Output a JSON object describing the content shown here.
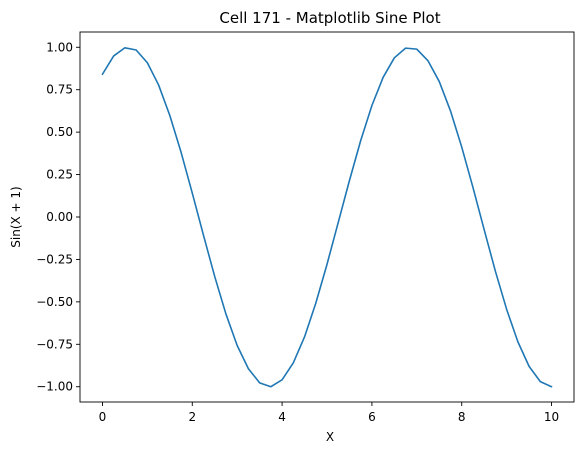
{
  "chart_data": {
    "type": "line",
    "title": "Cell 171 - Matplotlib Sine Plot",
    "xlabel": "X",
    "ylabel": "Sin(X + 1)",
    "xlim": [
      -0.5,
      10.5
    ],
    "ylim": [
      -1.09,
      1.09
    ],
    "xticks": [
      0,
      2,
      4,
      6,
      8,
      10
    ],
    "xtick_labels": [
      "0",
      "2",
      "4",
      "6",
      "8",
      "10"
    ],
    "yticks": [
      -1.0,
      -0.75,
      -0.5,
      -0.25,
      0.0,
      0.25,
      0.5,
      0.75,
      1.0
    ],
    "ytick_labels": [
      "−1.00",
      "−0.75",
      "−0.50",
      "−0.25",
      "0.00",
      "0.25",
      "0.50",
      "0.75",
      "1.00"
    ],
    "grid": false,
    "series": [
      {
        "color": "#1f77b4",
        "x": [
          0,
          0.25,
          0.5,
          0.75,
          1,
          1.25,
          1.5,
          1.75,
          2,
          2.25,
          2.5,
          2.75,
          3,
          3.25,
          3.5,
          3.75,
          4,
          4.25,
          4.5,
          4.75,
          5,
          5.25,
          5.5,
          5.75,
          6,
          6.25,
          6.5,
          6.75,
          7,
          7.25,
          7.5,
          7.75,
          8,
          8.25,
          8.5,
          8.75,
          9,
          9.25,
          9.5,
          9.75,
          10
        ],
        "y": [
          0.841,
          0.949,
          0.997,
          0.984,
          0.909,
          0.778,
          0.598,
          0.382,
          0.141,
          -0.108,
          -0.351,
          -0.572,
          -0.757,
          -0.894,
          -0.977,
          -1.0,
          -0.959,
          -0.859,
          -0.706,
          -0.508,
          -0.279,
          -0.032,
          0.215,
          0.45,
          0.657,
          0.823,
          0.938,
          0.995,
          0.989,
          0.92,
          0.798,
          0.625,
          0.412,
          0.174,
          -0.075,
          -0.32,
          -0.544,
          -0.735,
          -0.88,
          -0.97,
          -1.0
        ]
      }
    ]
  }
}
